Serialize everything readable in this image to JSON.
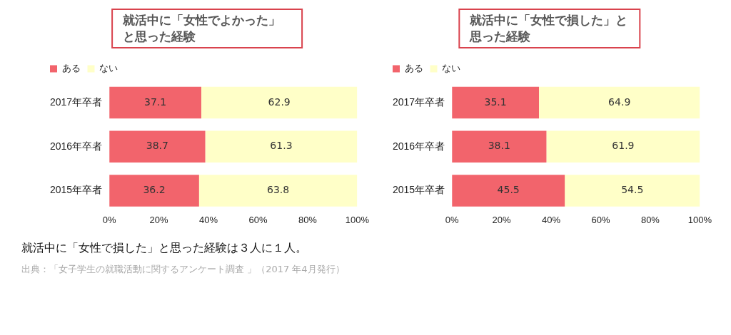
{
  "chart_data": [
    {
      "type": "bar",
      "title": "就活中に「女性でよかった」と思った経験",
      "orientation": "horizontal",
      "stacked": true,
      "categories": [
        "2017年卒者",
        "2016年卒者",
        "2015年卒者"
      ],
      "series": [
        {
          "name": "ある",
          "color": "#f2646c",
          "values": [
            37.1,
            38.7,
            36.2
          ]
        },
        {
          "name": "ない",
          "color": "#ffffc8",
          "values": [
            62.9,
            61.3,
            63.8
          ]
        }
      ],
      "xlim": [
        0,
        100
      ],
      "xticks": [
        {
          "value": 0,
          "label": "0%"
        },
        {
          "value": 20,
          "label": "20%"
        },
        {
          "value": 40,
          "label": "40%"
        },
        {
          "value": 60,
          "label": "60%"
        },
        {
          "value": 80,
          "label": "80%"
        },
        {
          "value": 100,
          "label": "100%"
        }
      ],
      "legend": "top left",
      "data_labels": true
    },
    {
      "type": "bar",
      "title": "就活中に「女性で損した」と思った経験",
      "orientation": "horizontal",
      "stacked": true,
      "categories": [
        "2017年卒者",
        "2016年卒者",
        "2015年卒者"
      ],
      "series": [
        {
          "name": "ある",
          "color": "#f2646c",
          "values": [
            35.1,
            38.1,
            45.5
          ]
        },
        {
          "name": "ない",
          "color": "#ffffc8",
          "values": [
            64.9,
            61.9,
            54.5
          ]
        }
      ],
      "xlim": [
        0,
        100
      ],
      "xticks": [
        {
          "value": 0,
          "label": "0%"
        },
        {
          "value": 20,
          "label": "20%"
        },
        {
          "value": 40,
          "label": "40%"
        },
        {
          "value": 60,
          "label": "60%"
        },
        {
          "value": 80,
          "label": "80%"
        },
        {
          "value": 100,
          "label": "100%"
        }
      ],
      "legend": "top left",
      "data_labels": true
    },
    {
      "type": "other",
      "annotations": [
        "就活中に「女性で損した」と思った経験は３人に１人。",
        "出典：「女子学生の就職活動に関するアンケート調査 」（2017 年4月発行）"
      ]
    }
  ]
}
